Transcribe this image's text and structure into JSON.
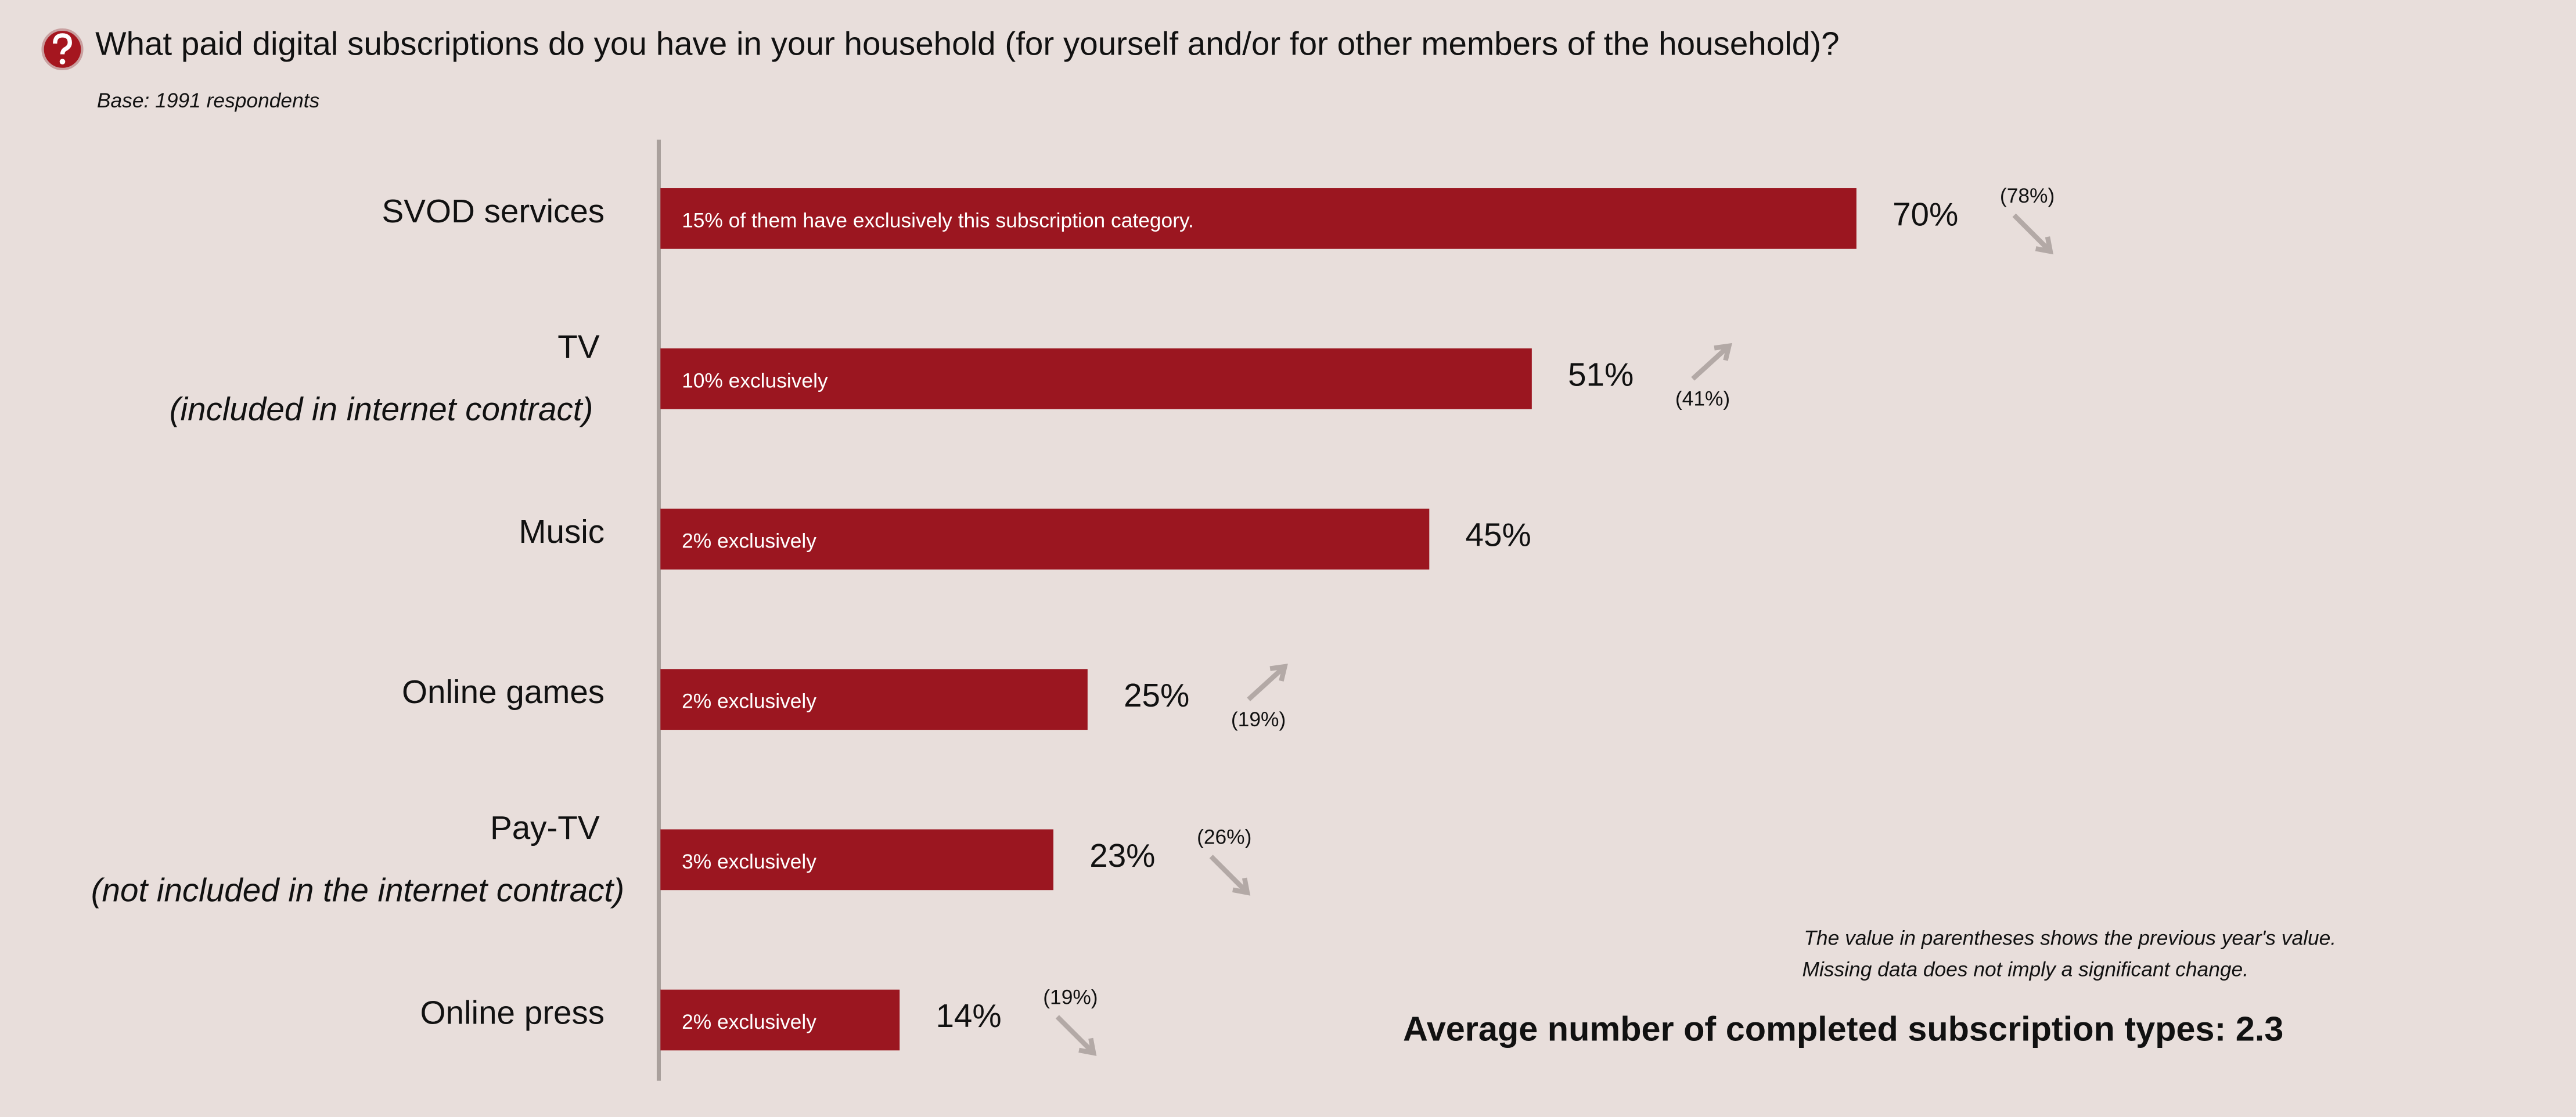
{
  "chart_data": {
    "type": "bar",
    "orientation": "horizontal",
    "title": "What paid digital subscriptions do you have in your household (for yourself and/or for other members of the household)?",
    "subtitle": "Base: 1991 respondents",
    "categories": [
      "SVOD services",
      "TV",
      "Music",
      "Online games",
      "Pay-TV",
      "Online press"
    ],
    "category_notes": [
      null,
      "(included in internet contract)",
      null,
      null,
      "(not included in the internet contract)",
      null
    ],
    "values": [
      70,
      51,
      45,
      25,
      23,
      14
    ],
    "value_labels": [
      "70%",
      "51%",
      "45%",
      "25%",
      "23%",
      "14%"
    ],
    "bar_notes": [
      "15% of them have exclusively this subscription category.",
      "10% exclusively",
      "2% exclusively",
      "2% exclusively",
      "3% exclusively",
      "2% exclusively"
    ],
    "previous_values": [
      78,
      41,
      null,
      19,
      26,
      19
    ],
    "previous_labels": [
      "(78%)",
      "(41%)",
      null,
      "(19%)",
      "(26%)",
      "(19%)"
    ],
    "color": "#9b1620",
    "footnotes": [
      "The value in parentheses shows the previous year's value.",
      "Missing data does not imply a significant change."
    ],
    "summary": "Average number of completed subscription types: 2.3"
  }
}
